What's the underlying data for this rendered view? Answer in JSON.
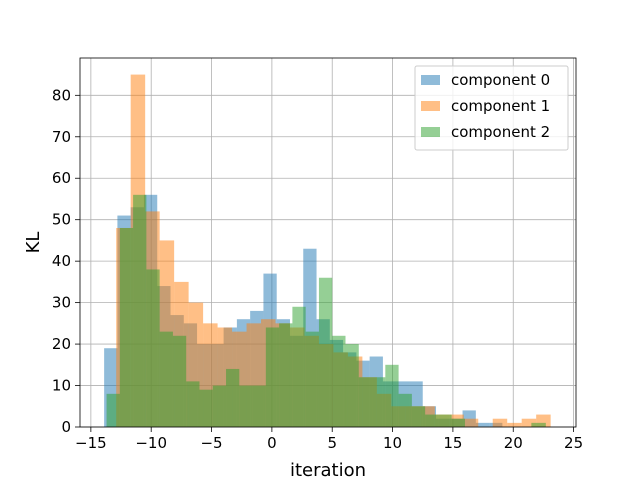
{
  "chart_data": {
    "type": "bar",
    "subtype": "histogram",
    "title": "",
    "xlabel": "iteration",
    "ylabel": "KL",
    "xlim": [
      -15.9,
      25.2
    ],
    "ylim": [
      0,
      89
    ],
    "xticks": [
      -15,
      -10,
      -5,
      0,
      5,
      10,
      15,
      20,
      25
    ],
    "xtick_labels": [
      "−15",
      "−10",
      "−5",
      "0",
      "5",
      "10",
      "15",
      "20",
      "25"
    ],
    "yticks": [
      0,
      10,
      20,
      30,
      40,
      50,
      60,
      70,
      80
    ],
    "ytick_labels": [
      "0",
      "10",
      "20",
      "30",
      "40",
      "50",
      "60",
      "70",
      "80"
    ],
    "grid": true,
    "legend_position": "top-right",
    "series": [
      {
        "name": "component 0",
        "color": "#1f77b4",
        "alpha": 0.5,
        "bin_edges": [
          -13.9,
          -12.8,
          -11.7,
          -10.6,
          -9.5,
          -8.4,
          -7.3,
          -6.2,
          -5.1,
          -4.0,
          -2.9,
          -1.8,
          -0.7,
          0.4,
          1.5,
          2.6,
          3.7,
          4.8,
          5.9,
          7.0,
          8.1,
          9.2,
          10.3,
          11.4,
          12.5,
          13.6,
          14.7,
          15.8,
          16.9,
          18.0,
          19.1,
          20.2
        ],
        "counts": [
          19,
          51,
          53,
          56,
          34,
          27,
          25,
          20,
          20,
          24,
          26,
          28,
          37,
          26,
          22,
          43,
          26,
          21,
          18,
          16,
          17,
          11,
          11,
          11,
          5,
          2,
          2,
          4,
          1,
          1,
          0
        ]
      },
      {
        "name": "component 1",
        "color": "#ff7f0e",
        "alpha": 0.5,
        "bin_edges": [
          -12.9,
          -11.7,
          -10.5,
          -9.3,
          -8.1,
          -6.9,
          -5.7,
          -4.5,
          -3.3,
          -2.1,
          -0.9,
          0.3,
          1.5,
          2.7,
          3.9,
          5.1,
          6.3,
          7.5,
          8.7,
          9.9,
          11.1,
          12.3,
          13.5,
          14.7,
          15.9,
          17.1,
          18.3,
          19.5,
          20.7,
          21.9,
          23.1
        ],
        "counts": [
          48,
          85,
          52,
          45,
          35,
          30,
          25,
          24,
          23,
          25,
          26,
          25,
          24,
          22,
          20,
          18,
          17,
          12,
          8,
          5,
          5,
          5,
          3,
          3,
          2,
          0,
          2,
          1,
          2,
          3
        ]
      },
      {
        "name": "component 2",
        "color": "#2ca02c",
        "alpha": 0.5,
        "bin_edges": [
          -13.7,
          -12.6,
          -11.5,
          -10.4,
          -9.3,
          -8.2,
          -7.1,
          -6.0,
          -4.9,
          -3.8,
          -2.7,
          -1.6,
          -0.5,
          0.6,
          1.7,
          2.8,
          3.9,
          5.0,
          6.1,
          7.2,
          8.3,
          9.4,
          10.5,
          11.6,
          12.7,
          13.8,
          14.9,
          16.0,
          17.1,
          18.2,
          19.3,
          20.4,
          21.5,
          22.7
        ],
        "counts": [
          8,
          48,
          56,
          38,
          23,
          22,
          11,
          9,
          10,
          14,
          10,
          10,
          24,
          25,
          29,
          23,
          36,
          22,
          20,
          12,
          12,
          15,
          8,
          5,
          3,
          3,
          2,
          0,
          0,
          0,
          0,
          0,
          1
        ]
      }
    ]
  }
}
